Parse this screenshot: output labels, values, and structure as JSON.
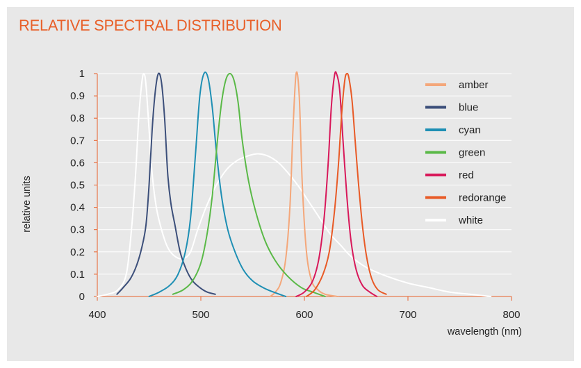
{
  "chart_data": {
    "type": "line",
    "title": "RELATIVE SPECTRAL DISTRIBUTION",
    "xlabel": "wavelength (nm)",
    "ylabel": "relative units",
    "xlim": [
      400,
      800
    ],
    "ylim": [
      0,
      1
    ],
    "x_ticks": [
      "400",
      "500",
      "600",
      "700",
      "800"
    ],
    "x_tick_values": [
      400,
      500,
      600,
      700,
      800
    ],
    "y_ticks": [
      "0",
      "0.1",
      "0.2",
      "0.3",
      "0.4",
      "0.5",
      "0.6",
      "0.7",
      "0.8",
      "0.9",
      "1"
    ],
    "y_tick_values": [
      0,
      0.1,
      0.2,
      0.3,
      0.4,
      0.5,
      0.6,
      0.7,
      0.8,
      0.9,
      1
    ],
    "grid": "horizontal",
    "legend_position": "right",
    "series": [
      {
        "name": "amber",
        "color": "#f4a77a",
        "x": [
          567,
          572,
          577,
          582,
          586,
          589,
          592,
          595,
          598,
          602,
          607,
          613,
          620,
          632
        ],
        "y": [
          0.0,
          0.02,
          0.06,
          0.17,
          0.4,
          0.75,
          1.0,
          0.9,
          0.5,
          0.2,
          0.07,
          0.03,
          0.01,
          0.0
        ]
      },
      {
        "name": "blue",
        "color": "#3c4f7a",
        "x": [
          419,
          425,
          432,
          438,
          443,
          447,
          450,
          453,
          456,
          459,
          462,
          465,
          468,
          471,
          475,
          480,
          486,
          492,
          499,
          506,
          514
        ],
        "y": [
          0.01,
          0.04,
          0.08,
          0.14,
          0.22,
          0.32,
          0.5,
          0.75,
          0.92,
          1.0,
          0.96,
          0.8,
          0.55,
          0.42,
          0.32,
          0.2,
          0.12,
          0.07,
          0.04,
          0.02,
          0.01
        ]
      },
      {
        "name": "cyan",
        "color": "#1e8fb4",
        "x": [
          450,
          460,
          470,
          478,
          485,
          490,
          495,
          499,
          503,
          507,
          511,
          515,
          520,
          526,
          533,
          541,
          550,
          560,
          570,
          582
        ],
        "y": [
          0.0,
          0.02,
          0.05,
          0.1,
          0.2,
          0.35,
          0.65,
          0.9,
          1.0,
          0.98,
          0.85,
          0.65,
          0.45,
          0.3,
          0.2,
          0.12,
          0.07,
          0.04,
          0.02,
          0.0
        ]
      },
      {
        "name": "green",
        "color": "#5ab947",
        "x": [
          473,
          483,
          492,
          500,
          506,
          511,
          516,
          520,
          524,
          528,
          532,
          536,
          540,
          546,
          553,
          562,
          572,
          584,
          597,
          608,
          620
        ],
        "y": [
          0.01,
          0.03,
          0.07,
          0.15,
          0.28,
          0.45,
          0.7,
          0.87,
          0.97,
          1.0,
          0.97,
          0.87,
          0.7,
          0.52,
          0.38,
          0.25,
          0.16,
          0.09,
          0.04,
          0.02,
          0.0
        ]
      },
      {
        "name": "red",
        "color": "#d8185a",
        "x": [
          592,
          600,
          608,
          614,
          619,
          623,
          626,
          629,
          631,
          634,
          637,
          641,
          645,
          650,
          656,
          663,
          670
        ],
        "y": [
          0.0,
          0.02,
          0.07,
          0.17,
          0.35,
          0.6,
          0.85,
          0.99,
          1.0,
          0.93,
          0.72,
          0.45,
          0.25,
          0.12,
          0.05,
          0.02,
          0.0
        ]
      },
      {
        "name": "redorange",
        "color": "#e85a26",
        "x": [
          602,
          610,
          618,
          624,
          629,
          633,
          636,
          639,
          641,
          643,
          646,
          649,
          652,
          656,
          660,
          665,
          671,
          679
        ],
        "y": [
          0.0,
          0.03,
          0.1,
          0.2,
          0.38,
          0.6,
          0.82,
          0.97,
          1.0,
          0.98,
          0.88,
          0.7,
          0.52,
          0.32,
          0.18,
          0.08,
          0.03,
          0.01
        ]
      },
      {
        "name": "white",
        "color": "#ffffff",
        "x": [
          400,
          410,
          420,
          428,
          433,
          437,
          440,
          443,
          445,
          447,
          450,
          453,
          457,
          462,
          468,
          475,
          483,
          490,
          497,
          505,
          515,
          525,
          535,
          545,
          555,
          565,
          575,
          585,
          595,
          605,
          615,
          625,
          635,
          645,
          660,
          680,
          700,
          720,
          740,
          760,
          780
        ],
        "y": [
          0.0,
          0.01,
          0.03,
          0.1,
          0.3,
          0.55,
          0.8,
          0.96,
          1.0,
          0.95,
          0.75,
          0.55,
          0.4,
          0.3,
          0.22,
          0.18,
          0.17,
          0.2,
          0.3,
          0.4,
          0.5,
          0.57,
          0.61,
          0.63,
          0.64,
          0.63,
          0.6,
          0.55,
          0.49,
          0.42,
          0.35,
          0.28,
          0.23,
          0.18,
          0.13,
          0.09,
          0.06,
          0.04,
          0.02,
          0.01,
          0.0
        ]
      }
    ]
  }
}
